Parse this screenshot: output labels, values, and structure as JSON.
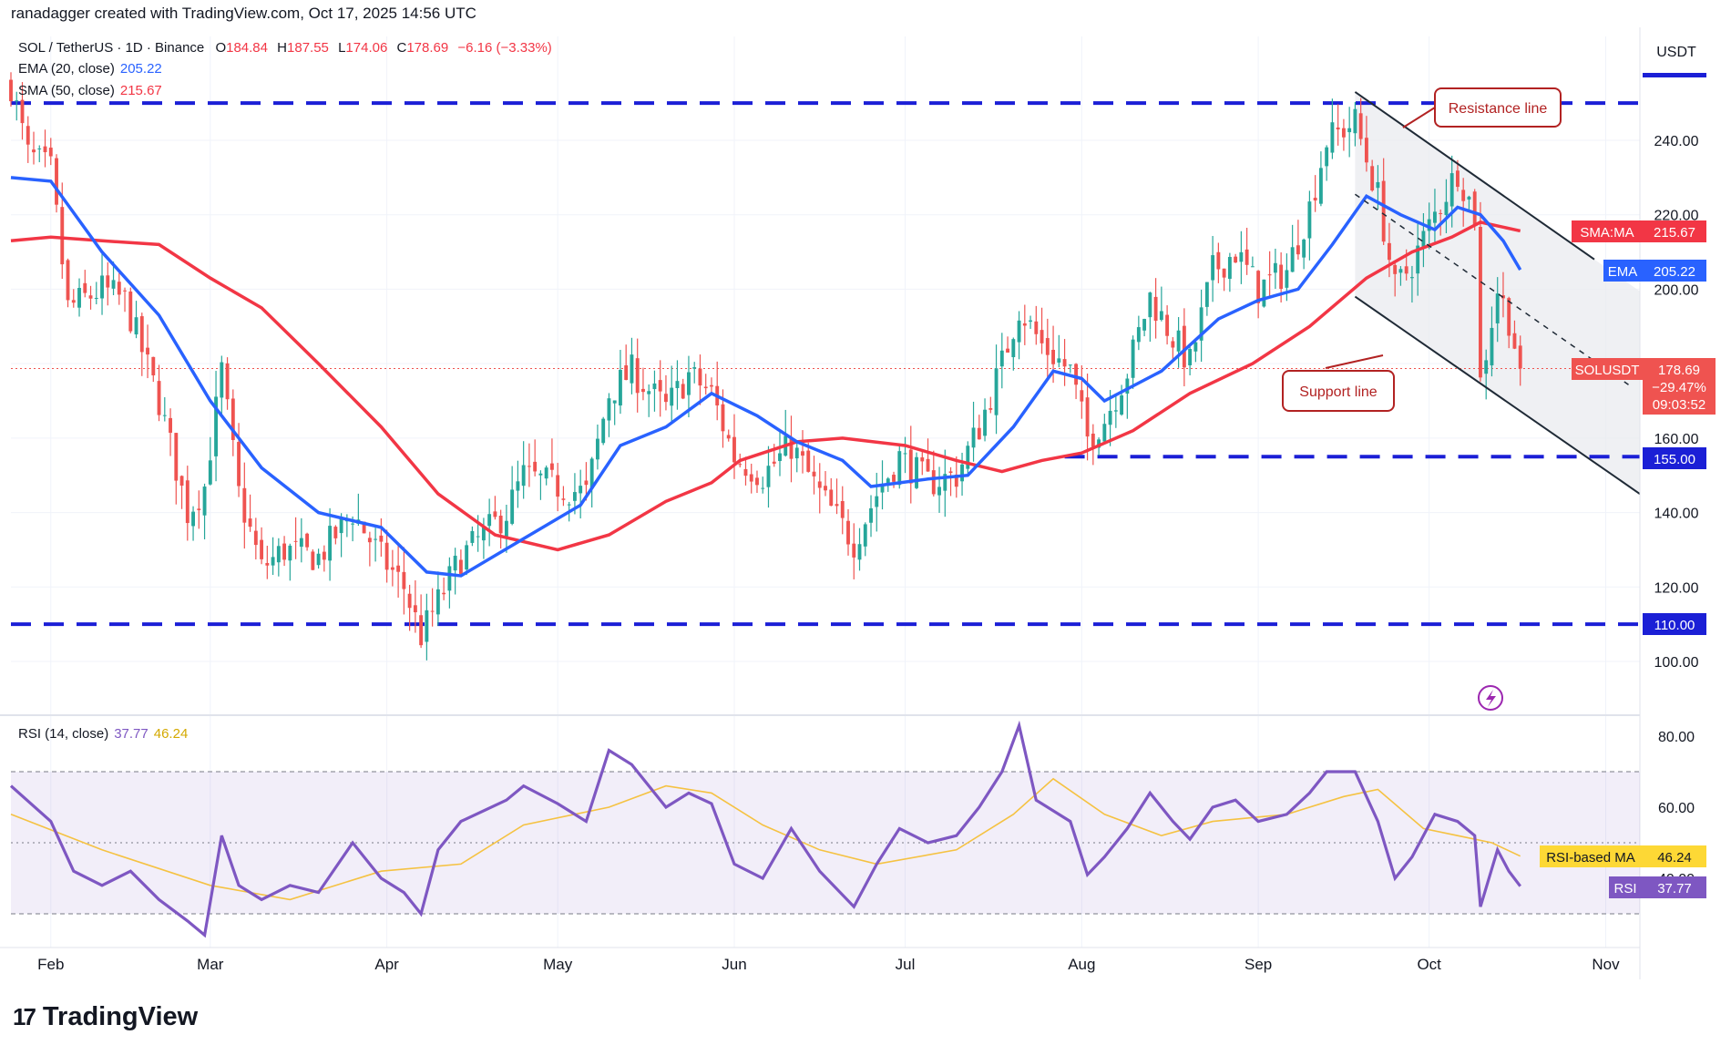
{
  "header": {
    "attribution": "ranadagger created with TradingView.com, Oct 17, 2025 14:56 UTC"
  },
  "symbol_line": {
    "name": "SOL / TetherUS · 1D · Binance",
    "o_label": "O",
    "o_value": "184.84",
    "h_label": "H",
    "h_value": "187.55",
    "l_label": "L",
    "l_value": "174.06",
    "c_label": "C",
    "c_value": "178.69",
    "change": "−6.16 (−3.33%)",
    "change_color": "#f23645"
  },
  "indicators": {
    "ema_label": "EMA (20, close)",
    "ema_value": "205.22",
    "ema_color": "#2962ff",
    "sma_label": "SMA (50, close)",
    "sma_value": "215.67",
    "sma_color": "#f23645",
    "rsi_label": "RSI (14, close)",
    "rsi_value": "37.77",
    "rsi_ma_value": "46.24",
    "rsi_color": "#7e57c2",
    "rsi_ma_color": "#fdd835"
  },
  "axis": {
    "currency": "USDT",
    "price_ticks": [
      "240.00",
      "220.00",
      "200.00",
      "160.00",
      "140.00",
      "120.00",
      "100.00"
    ],
    "rsi_ticks": [
      "80.00",
      "60.00",
      "40.00"
    ],
    "months": [
      "Feb",
      "Mar",
      "Apr",
      "May",
      "Jun",
      "Jul",
      "Aug",
      "Sep",
      "Oct",
      "Nov"
    ]
  },
  "tags": {
    "sma": {
      "label": "SMA:MA",
      "value": "215.67"
    },
    "ema": {
      "label": "EMA",
      "value": "205.22"
    },
    "last": {
      "label": "SOLUSDT",
      "price": "178.69",
      "change": "−29.47%",
      "countdown": "09:03:52"
    },
    "level_155": "155.00",
    "level_110": "110.00",
    "rsi_ma": {
      "label": "RSI-based MA",
      "value": "46.24"
    },
    "rsi": {
      "label": "RSI",
      "value": "37.77"
    }
  },
  "annotations": {
    "resistance": "Resistance line",
    "support": "Support line"
  },
  "brand": {
    "name": "TradingView"
  },
  "colors": {
    "up": "#26a69a",
    "down": "#ef5350",
    "level": "#1b1fd6",
    "annotation": "#b22222",
    "channel_line": "#1f2a36"
  },
  "chart_data": {
    "type": "candlestick",
    "title": "SOL / TetherUS · 1D · Binance",
    "ylabel": "USDT",
    "ylim": [
      90,
      255
    ],
    "x_range": [
      "2025-01-25",
      "2025-11-07"
    ],
    "horizontal_levels": [
      250,
      155,
      110
    ],
    "channel": {
      "resistance": [
        {
          "x": "2025-09-18",
          "y": 253
        },
        {
          "x": "2025-10-30",
          "y": 208
        }
      ],
      "support": [
        {
          "x": "2025-09-18",
          "y": 198
        },
        {
          "x": "2025-11-07",
          "y": 145
        }
      ]
    },
    "anchors": [
      [
        "2025-01-25",
        255
      ],
      [
        "2025-01-28",
        236
      ],
      [
        "2025-02-01",
        232
      ],
      [
        "2025-02-04",
        195
      ],
      [
        "2025-02-10",
        200
      ],
      [
        "2025-02-14",
        197
      ],
      [
        "2025-02-20",
        170
      ],
      [
        "2025-02-25",
        140
      ],
      [
        "2025-02-28",
        147
      ],
      [
        "2025-03-03",
        178
      ],
      [
        "2025-03-06",
        145
      ],
      [
        "2025-03-10",
        125
      ],
      [
        "2025-03-14",
        130
      ],
      [
        "2025-03-20",
        128
      ],
      [
        "2025-03-26",
        140
      ],
      [
        "2025-03-31",
        128
      ],
      [
        "2025-04-04",
        120
      ],
      [
        "2025-04-07",
        107
      ],
      [
        "2025-04-10",
        116
      ],
      [
        "2025-04-14",
        128
      ],
      [
        "2025-04-22",
        140
      ],
      [
        "2025-04-25",
        150
      ],
      [
        "2025-05-01",
        147
      ],
      [
        "2025-05-06",
        145
      ],
      [
        "2025-05-10",
        172
      ],
      [
        "2025-05-14",
        178
      ],
      [
        "2025-05-20",
        168
      ],
      [
        "2025-05-24",
        177
      ],
      [
        "2025-05-28",
        172
      ],
      [
        "2025-06-01",
        155
      ],
      [
        "2025-06-06",
        150
      ],
      [
        "2025-06-11",
        158
      ],
      [
        "2025-06-16",
        145
      ],
      [
        "2025-06-22",
        132
      ],
      [
        "2025-06-26",
        145
      ],
      [
        "2025-06-30",
        155
      ],
      [
        "2025-07-05",
        148
      ],
      [
        "2025-07-10",
        150
      ],
      [
        "2025-07-14",
        163
      ],
      [
        "2025-07-18",
        180
      ],
      [
        "2025-07-21",
        195
      ],
      [
        "2025-07-25",
        185
      ],
      [
        "2025-07-30",
        178
      ],
      [
        "2025-08-02",
        160
      ],
      [
        "2025-08-05",
        165
      ],
      [
        "2025-08-09",
        178
      ],
      [
        "2025-08-13",
        198
      ],
      [
        "2025-08-17",
        187
      ],
      [
        "2025-08-20",
        180
      ],
      [
        "2025-08-24",
        205
      ],
      [
        "2025-08-28",
        210
      ],
      [
        "2025-09-01",
        200
      ],
      [
        "2025-09-06",
        205
      ],
      [
        "2025-09-10",
        222
      ],
      [
        "2025-09-13",
        240
      ],
      [
        "2025-09-18",
        245
      ],
      [
        "2025-09-22",
        225
      ],
      [
        "2025-09-25",
        200
      ],
      [
        "2025-09-28",
        207
      ],
      [
        "2025-10-02",
        220
      ],
      [
        "2025-10-06",
        232
      ],
      [
        "2025-10-09",
        220
      ],
      [
        "2025-10-10",
        175
      ],
      [
        "2025-10-13",
        200
      ],
      [
        "2025-10-15",
        192
      ],
      [
        "2025-10-17",
        178.69
      ]
    ],
    "ema20": [
      [
        "2025-01-25",
        230
      ],
      [
        "2025-02-01",
        229
      ],
      [
        "2025-02-10",
        210
      ],
      [
        "2025-02-20",
        193
      ],
      [
        "2025-03-01",
        170
      ],
      [
        "2025-03-10",
        152
      ],
      [
        "2025-03-20",
        140
      ],
      [
        "2025-03-31",
        136
      ],
      [
        "2025-04-08",
        124
      ],
      [
        "2025-04-14",
        123
      ],
      [
        "2025-04-25",
        133
      ],
      [
        "2025-05-05",
        142
      ],
      [
        "2025-05-12",
        158
      ],
      [
        "2025-05-20",
        163
      ],
      [
        "2025-05-28",
        172
      ],
      [
        "2025-06-05",
        166
      ],
      [
        "2025-06-12",
        159
      ],
      [
        "2025-06-20",
        154
      ],
      [
        "2025-06-25",
        147
      ],
      [
        "2025-07-05",
        149
      ],
      [
        "2025-07-12",
        150
      ],
      [
        "2025-07-20",
        163
      ],
      [
        "2025-07-27",
        178
      ],
      [
        "2025-08-01",
        176
      ],
      [
        "2025-08-05",
        170
      ],
      [
        "2025-08-15",
        178
      ],
      [
        "2025-08-25",
        192
      ],
      [
        "2025-09-01",
        197
      ],
      [
        "2025-09-08",
        200
      ],
      [
        "2025-09-14",
        212
      ],
      [
        "2025-09-20",
        225
      ],
      [
        "2025-09-26",
        220
      ],
      [
        "2025-10-02",
        216
      ],
      [
        "2025-10-06",
        222
      ],
      [
        "2025-10-10",
        220
      ],
      [
        "2025-10-14",
        213
      ],
      [
        "2025-10-17",
        205.22
      ]
    ],
    "sma50": [
      [
        "2025-01-25",
        213
      ],
      [
        "2025-02-01",
        214
      ],
      [
        "2025-02-10",
        213
      ],
      [
        "2025-02-20",
        212
      ],
      [
        "2025-03-01",
        203
      ],
      [
        "2025-03-10",
        195
      ],
      [
        "2025-03-20",
        180
      ],
      [
        "2025-03-31",
        163
      ],
      [
        "2025-04-10",
        145
      ],
      [
        "2025-04-20",
        134
      ],
      [
        "2025-05-01",
        130
      ],
      [
        "2025-05-10",
        134
      ],
      [
        "2025-05-20",
        143
      ],
      [
        "2025-05-28",
        148
      ],
      [
        "2025-06-02",
        154
      ],
      [
        "2025-06-12",
        159
      ],
      [
        "2025-06-20",
        160
      ],
      [
        "2025-07-01",
        158
      ],
      [
        "2025-07-10",
        154
      ],
      [
        "2025-07-18",
        151
      ],
      [
        "2025-07-25",
        154
      ],
      [
        "2025-08-01",
        156
      ],
      [
        "2025-08-10",
        162
      ],
      [
        "2025-08-20",
        172
      ],
      [
        "2025-08-31",
        180
      ],
      [
        "2025-09-10",
        190
      ],
      [
        "2025-09-20",
        203
      ],
      [
        "2025-09-28",
        210
      ],
      [
        "2025-10-05",
        214
      ],
      [
        "2025-10-10",
        218
      ],
      [
        "2025-10-17",
        215.67
      ]
    ],
    "rsi": {
      "range": [
        20,
        90
      ],
      "band": [
        30,
        70
      ],
      "midline": 50,
      "values": [
        [
          "2025-01-25",
          66
        ],
        [
          "2025-02-01",
          56
        ],
        [
          "2025-02-05",
          42
        ],
        [
          "2025-02-10",
          38
        ],
        [
          "2025-02-15",
          42
        ],
        [
          "2025-02-20",
          34
        ],
        [
          "2025-02-25",
          28
        ],
        [
          "2025-02-28",
          24
        ],
        [
          "2025-03-03",
          52
        ],
        [
          "2025-03-06",
          38
        ],
        [
          "2025-03-10",
          34
        ],
        [
          "2025-03-15",
          38
        ],
        [
          "2025-03-20",
          36
        ],
        [
          "2025-03-26",
          50
        ],
        [
          "2025-03-31",
          40
        ],
        [
          "2025-04-04",
          36
        ],
        [
          "2025-04-07",
          30
        ],
        [
          "2025-04-10",
          48
        ],
        [
          "2025-04-14",
          56
        ],
        [
          "2025-04-22",
          62
        ],
        [
          "2025-04-25",
          66
        ],
        [
          "2025-05-01",
          61
        ],
        [
          "2025-05-06",
          56
        ],
        [
          "2025-05-10",
          76
        ],
        [
          "2025-05-14",
          72
        ],
        [
          "2025-05-20",
          60
        ],
        [
          "2025-05-24",
          64
        ],
        [
          "2025-05-28",
          61
        ],
        [
          "2025-06-01",
          44
        ],
        [
          "2025-06-06",
          40
        ],
        [
          "2025-06-11",
          54
        ],
        [
          "2025-06-16",
          42
        ],
        [
          "2025-06-22",
          32
        ],
        [
          "2025-06-26",
          44
        ],
        [
          "2025-06-30",
          54
        ],
        [
          "2025-07-05",
          50
        ],
        [
          "2025-07-10",
          52
        ],
        [
          "2025-07-14",
          60
        ],
        [
          "2025-07-18",
          70
        ],
        [
          "2025-07-21",
          83
        ],
        [
          "2025-07-24",
          62
        ],
        [
          "2025-07-30",
          56
        ],
        [
          "2025-08-02",
          41
        ],
        [
          "2025-08-05",
          46
        ],
        [
          "2025-08-09",
          54
        ],
        [
          "2025-08-13",
          64
        ],
        [
          "2025-08-17",
          56
        ],
        [
          "2025-08-20",
          51
        ],
        [
          "2025-08-24",
          60
        ],
        [
          "2025-08-28",
          62
        ],
        [
          "2025-09-01",
          56
        ],
        [
          "2025-09-06",
          58
        ],
        [
          "2025-09-10",
          64
        ],
        [
          "2025-09-13",
          70
        ],
        [
          "2025-09-18",
          70
        ],
        [
          "2025-09-22",
          56
        ],
        [
          "2025-09-25",
          40
        ],
        [
          "2025-09-28",
          46
        ],
        [
          "2025-10-02",
          58
        ],
        [
          "2025-10-06",
          56
        ],
        [
          "2025-10-09",
          52
        ],
        [
          "2025-10-10",
          32
        ],
        [
          "2025-10-13",
          48
        ],
        [
          "2025-10-15",
          42
        ],
        [
          "2025-10-17",
          37.77
        ]
      ],
      "ma": [
        [
          "2025-01-25",
          58
        ],
        [
          "2025-02-10",
          48
        ],
        [
          "2025-03-01",
          38
        ],
        [
          "2025-03-15",
          34
        ],
        [
          "2025-03-31",
          42
        ],
        [
          "2025-04-14",
          44
        ],
        [
          "2025-04-25",
          55
        ],
        [
          "2025-05-10",
          60
        ],
        [
          "2025-05-20",
          66
        ],
        [
          "2025-05-28",
          64
        ],
        [
          "2025-06-06",
          55
        ],
        [
          "2025-06-16",
          48
        ],
        [
          "2025-06-26",
          44
        ],
        [
          "2025-07-10",
          48
        ],
        [
          "2025-07-20",
          58
        ],
        [
          "2025-07-27",
          68
        ],
        [
          "2025-08-05",
          58
        ],
        [
          "2025-08-15",
          52
        ],
        [
          "2025-08-24",
          56
        ],
        [
          "2025-09-06",
          58
        ],
        [
          "2025-09-16",
          63
        ],
        [
          "2025-09-22",
          65
        ],
        [
          "2025-09-30",
          54
        ],
        [
          "2025-10-06",
          52
        ],
        [
          "2025-10-12",
          50
        ],
        [
          "2025-10-17",
          46.24
        ]
      ]
    }
  }
}
